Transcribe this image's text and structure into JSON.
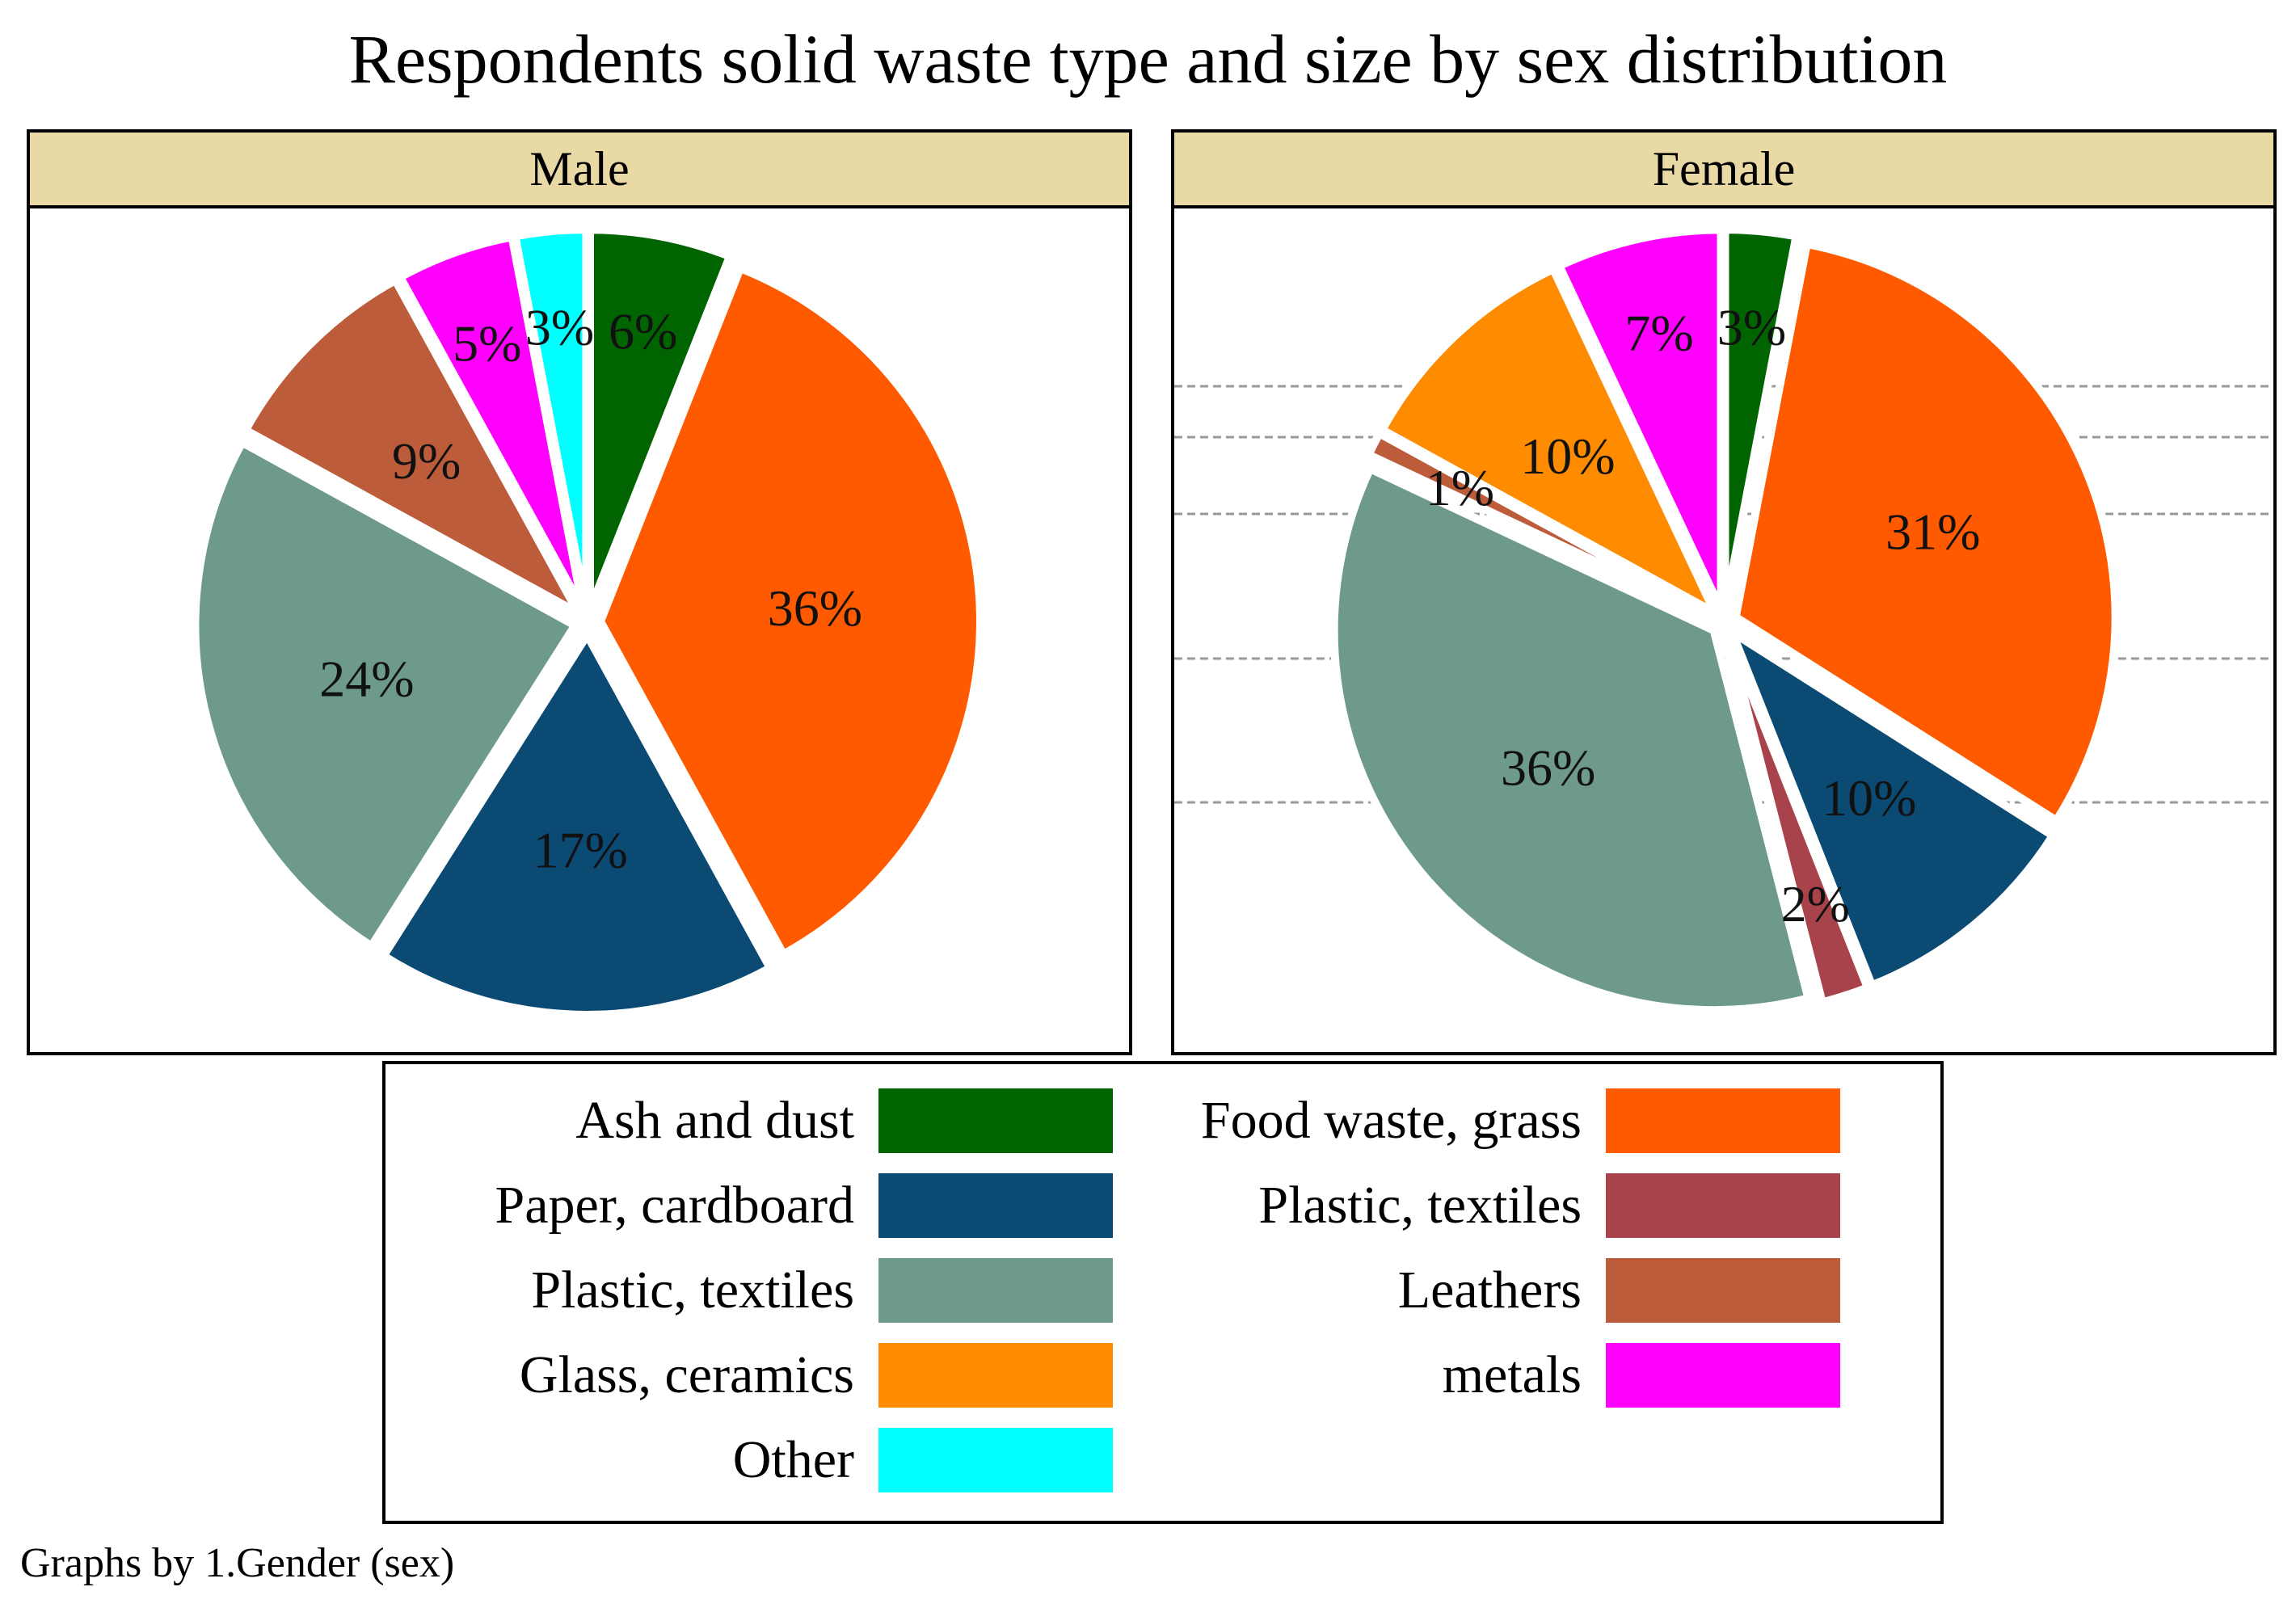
{
  "title": "Respondents solid waste type and size by sex distribution",
  "caption": "Graphs by 1.Gender (sex)",
  "colors": {
    "ash": "#006400",
    "food": "#ff5a00",
    "paper": "#0b4a73",
    "plastic_red": "#a8434b",
    "plastic": "#6e9a8a",
    "leathers": "#bc5c3a",
    "glass": "#ff8c00",
    "metals": "#ff00ff",
    "other": "#00ffff"
  },
  "legend": {
    "left": [
      {
        "label": "Ash and dust",
        "color": "#006400"
      },
      {
        "label": "Paper,  cardboard",
        "color": "#0b4a73"
      },
      {
        "label": "Plastic,  textiles",
        "color": "#6e9a8a"
      },
      {
        "label": "Glass, ceramics",
        "color": "#ff8c00"
      },
      {
        "label": "Other",
        "color": "#00ffff"
      }
    ],
    "right": [
      {
        "label": "Food waste, grass",
        "color": "#ff5a00"
      },
      {
        "label": "Plastic, textiles",
        "color": "#a8434b"
      },
      {
        "label": "Leathers",
        "color": "#bc5c3a"
      },
      {
        "label": "metals",
        "color": "#ff00ff"
      }
    ]
  },
  "chart_data": [
    {
      "type": "pie",
      "title": "Male",
      "slices": [
        {
          "name": "Ash and dust",
          "value": 6,
          "label": "6%",
          "color": "#006400"
        },
        {
          "name": "Food waste, grass",
          "value": 36,
          "label": "36%",
          "color": "#ff5a00"
        },
        {
          "name": "Paper,  cardboard",
          "value": 17,
          "label": "17%",
          "color": "#0b4a73"
        },
        {
          "name": "Plastic,  textiles",
          "value": 24,
          "label": "24%",
          "color": "#6e9a8a"
        },
        {
          "name": "Leathers",
          "value": 9,
          "label": "9%",
          "color": "#bc5c3a"
        },
        {
          "name": "metals",
          "value": 5,
          "label": "5%",
          "color": "#ff00ff"
        },
        {
          "name": "Other",
          "value": 3,
          "label": "3%",
          "color": "#00ffff"
        }
      ]
    },
    {
      "type": "pie",
      "title": "Female",
      "slices": [
        {
          "name": "Ash and dust",
          "value": 3,
          "label": "3%",
          "color": "#006400"
        },
        {
          "name": "Food waste, grass",
          "value": 31,
          "label": "31%",
          "color": "#ff5a00"
        },
        {
          "name": "Paper,  cardboard",
          "value": 10,
          "label": "10%",
          "color": "#0b4a73"
        },
        {
          "name": "Plastic, textiles",
          "value": 2,
          "label": "2%",
          "color": "#a8434b"
        },
        {
          "name": "Plastic,  textiles",
          "value": 36,
          "label": "36%",
          "color": "#6e9a8a"
        },
        {
          "name": "Leathers",
          "value": 1,
          "label": "1%",
          "color": "#bc5c3a"
        },
        {
          "name": "Glass, ceramics",
          "value": 10,
          "label": "10%",
          "color": "#ff8c00"
        },
        {
          "name": "metals",
          "value": 7,
          "label": "7%",
          "color": "#ff00ff"
        }
      ]
    }
  ]
}
